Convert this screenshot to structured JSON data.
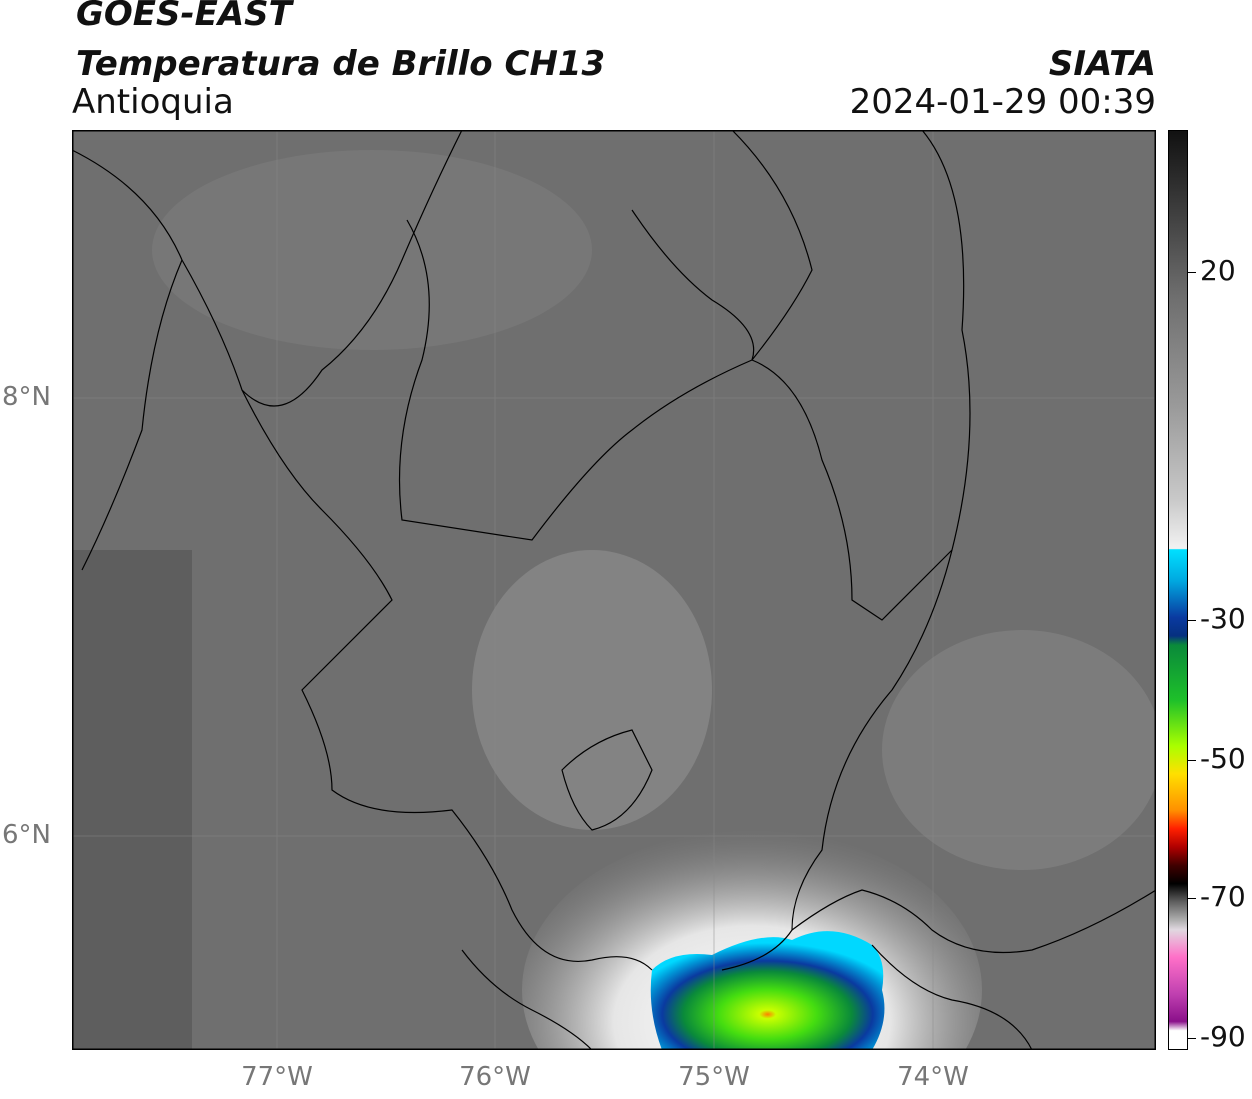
{
  "header": {
    "satellite": "GOES-EAST",
    "product": "Temperatura de Brillo CH13",
    "region": "Antioquia",
    "brand": "SIATA",
    "timestamp": "2024-01-29 00:39"
  },
  "axes": {
    "lat_labels": [
      "8°N",
      "6°N"
    ],
    "lon_labels": [
      "77°W",
      "76°W",
      "75°W",
      "74°W"
    ]
  },
  "colorbar": {
    "tick_labels": [
      "20",
      "-30",
      "-50",
      "-70",
      "-90"
    ]
  },
  "colors": {
    "land_gray": "#6f6f6f",
    "storm_cyan": "#00c8ff",
    "storm_blue": "#0a3aa0",
    "storm_green": "#2ccf1e",
    "storm_lime": "#b8ff00"
  }
}
